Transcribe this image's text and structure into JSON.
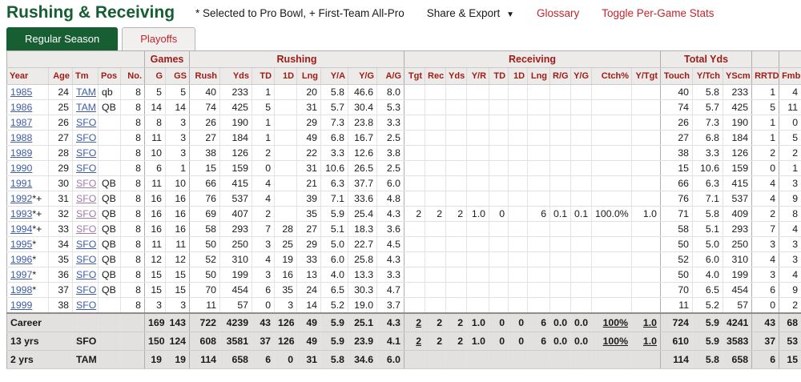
{
  "page": {
    "title": "Rushing & Receiving",
    "note": "* Selected to Pro Bowl, + First-Team All-Pro",
    "menu": {
      "share_export": "Share & Export",
      "dropdown_arrow": "▼",
      "glossary": "Glossary",
      "toggle_per_game": "Toggle Per-Game Stats"
    },
    "tabs": [
      {
        "label": "Regular Season",
        "active": true
      },
      {
        "label": "Playoffs",
        "active": false
      }
    ],
    "colors": {
      "title_green": "#155d33",
      "tab_active_bg": "#175e33",
      "header_maroon": "#9e1b13",
      "accent_red": "#c2262c",
      "link_blue": "#3e5ca8",
      "link_visited": "#a07bab"
    }
  },
  "table": {
    "groups": [
      {
        "label": "",
        "span": 5
      },
      {
        "label": "Games",
        "span": 2
      },
      {
        "label": "Rushing",
        "span": 8
      },
      {
        "label": "Receiving",
        "span": 11
      },
      {
        "label": "Total Yds",
        "span": 3
      },
      {
        "label": "",
        "span": 1
      },
      {
        "label": "",
        "span": 1
      }
    ],
    "columns": [
      "Year",
      "Age",
      "Tm",
      "Pos",
      "No.",
      "G",
      "GS",
      "Rush",
      "Yds",
      "TD",
      "1D",
      "Lng",
      "Y/A",
      "Y/G",
      "A/G",
      "Tgt",
      "Rec",
      "Yds",
      "Y/R",
      "TD",
      "1D",
      "Lng",
      "R/G",
      "Y/G",
      "Ctch%",
      "Y/Tgt",
      "Touch",
      "Y/Tch",
      "YScm",
      "RRTD",
      "Fmb"
    ],
    "rows": [
      {
        "year": "1985",
        "suffix": "",
        "age": "24",
        "team": "TAM",
        "team_visited": false,
        "pos": "qb",
        "cells": [
          "8",
          "5",
          "5",
          "40",
          "233",
          "1",
          "",
          "20",
          "5.8",
          "46.6",
          "8.0",
          "",
          "",
          "",
          "",
          "",
          "",
          "",
          "",
          "",
          "",
          "",
          "40",
          "5.8",
          "233",
          "1",
          "4"
        ]
      },
      {
        "year": "1986",
        "suffix": "",
        "age": "25",
        "team": "TAM",
        "team_visited": false,
        "pos": "QB",
        "cells": [
          "8",
          "14",
          "14",
          "74",
          "425",
          "5",
          "",
          "31",
          "5.7",
          "30.4",
          "5.3",
          "",
          "",
          "",
          "",
          "",
          "",
          "",
          "",
          "",
          "",
          "",
          "74",
          "5.7",
          "425",
          "5",
          "11"
        ]
      },
      {
        "year": "1987",
        "suffix": "",
        "age": "26",
        "team": "SFO",
        "team_visited": false,
        "pos": "",
        "cells": [
          "8",
          "8",
          "3",
          "26",
          "190",
          "1",
          "",
          "29",
          "7.3",
          "23.8",
          "3.3",
          "",
          "",
          "",
          "",
          "",
          "",
          "",
          "",
          "",
          "",
          "",
          "26",
          "7.3",
          "190",
          "1",
          "0"
        ]
      },
      {
        "year": "1988",
        "suffix": "",
        "age": "27",
        "team": "SFO",
        "team_visited": false,
        "pos": "",
        "cells": [
          "8",
          "11",
          "3",
          "27",
          "184",
          "1",
          "",
          "49",
          "6.8",
          "16.7",
          "2.5",
          "",
          "",
          "",
          "",
          "",
          "",
          "",
          "",
          "",
          "",
          "",
          "27",
          "6.8",
          "184",
          "1",
          "5"
        ]
      },
      {
        "year": "1989",
        "suffix": "",
        "age": "28",
        "team": "SFO",
        "team_visited": false,
        "pos": "",
        "cells": [
          "8",
          "10",
          "3",
          "38",
          "126",
          "2",
          "",
          "22",
          "3.3",
          "12.6",
          "3.8",
          "",
          "",
          "",
          "",
          "",
          "",
          "",
          "",
          "",
          "",
          "",
          "38",
          "3.3",
          "126",
          "2",
          "2"
        ]
      },
      {
        "year": "1990",
        "suffix": "",
        "age": "29",
        "team": "SFO",
        "team_visited": false,
        "pos": "",
        "cells": [
          "8",
          "6",
          "1",
          "15",
          "159",
          "0",
          "",
          "31",
          "10.6",
          "26.5",
          "2.5",
          "",
          "",
          "",
          "",
          "",
          "",
          "",
          "",
          "",
          "",
          "",
          "15",
          "10.6",
          "159",
          "0",
          "1"
        ]
      },
      {
        "year": "1991",
        "suffix": "",
        "age": "30",
        "team": "SFO",
        "team_visited": true,
        "pos": "QB",
        "cells": [
          "8",
          "11",
          "10",
          "66",
          "415",
          "4",
          "",
          "21",
          "6.3",
          "37.7",
          "6.0",
          "",
          "",
          "",
          "",
          "",
          "",
          "",
          "",
          "",
          "",
          "",
          "66",
          "6.3",
          "415",
          "4",
          "3"
        ]
      },
      {
        "year": "1992",
        "suffix": "*+",
        "age": "31",
        "team": "SFO",
        "team_visited": true,
        "pos": "QB",
        "cells": [
          "8",
          "16",
          "16",
          "76",
          "537",
          "4",
          "",
          "39",
          "7.1",
          "33.6",
          "4.8",
          "",
          "",
          "",
          "",
          "",
          "",
          "",
          "",
          "",
          "",
          "",
          "76",
          "7.1",
          "537",
          "4",
          "9"
        ]
      },
      {
        "year": "1993",
        "suffix": "*+",
        "age": "32",
        "team": "SFO",
        "team_visited": true,
        "pos": "QB",
        "cells": [
          "8",
          "16",
          "16",
          "69",
          "407",
          "2",
          "",
          "35",
          "5.9",
          "25.4",
          "4.3",
          "2",
          "2",
          "2",
          "1.0",
          "0",
          "",
          "6",
          "0.1",
          "0.1",
          "100.0%",
          "1.0",
          "71",
          "5.8",
          "409",
          "2",
          "8"
        ]
      },
      {
        "year": "1994",
        "suffix": "*+",
        "age": "33",
        "team": "SFO",
        "team_visited": true,
        "pos": "QB",
        "cells": [
          "8",
          "16",
          "16",
          "58",
          "293",
          "7",
          "28",
          "27",
          "5.1",
          "18.3",
          "3.6",
          "",
          "",
          "",
          "",
          "",
          "",
          "",
          "",
          "",
          "",
          "",
          "58",
          "5.1",
          "293",
          "7",
          "4"
        ]
      },
      {
        "year": "1995",
        "suffix": "*",
        "age": "34",
        "team": "SFO",
        "team_visited": false,
        "pos": "QB",
        "cells": [
          "8",
          "11",
          "11",
          "50",
          "250",
          "3",
          "25",
          "29",
          "5.0",
          "22.7",
          "4.5",
          "",
          "",
          "",
          "",
          "",
          "",
          "",
          "",
          "",
          "",
          "",
          "50",
          "5.0",
          "250",
          "3",
          "3"
        ]
      },
      {
        "year": "1996",
        "suffix": "*",
        "age": "35",
        "team": "SFO",
        "team_visited": false,
        "pos": "QB",
        "cells": [
          "8",
          "12",
          "12",
          "52",
          "310",
          "4",
          "19",
          "33",
          "6.0",
          "25.8",
          "4.3",
          "",
          "",
          "",
          "",
          "",
          "",
          "",
          "",
          "",
          "",
          "",
          "52",
          "6.0",
          "310",
          "4",
          "3"
        ]
      },
      {
        "year": "1997",
        "suffix": "*",
        "age": "36",
        "team": "SFO",
        "team_visited": false,
        "pos": "QB",
        "cells": [
          "8",
          "15",
          "15",
          "50",
          "199",
          "3",
          "16",
          "13",
          "4.0",
          "13.3",
          "3.3",
          "",
          "",
          "",
          "",
          "",
          "",
          "",
          "",
          "",
          "",
          "",
          "50",
          "4.0",
          "199",
          "3",
          "4"
        ]
      },
      {
        "year": "1998",
        "suffix": "*",
        "age": "37",
        "team": "SFO",
        "team_visited": false,
        "pos": "QB",
        "cells": [
          "8",
          "15",
          "15",
          "70",
          "454",
          "6",
          "35",
          "24",
          "6.5",
          "30.3",
          "4.7",
          "",
          "",
          "",
          "",
          "",
          "",
          "",
          "",
          "",
          "",
          "",
          "70",
          "6.5",
          "454",
          "6",
          "9"
        ]
      },
      {
        "year": "1999",
        "suffix": "",
        "age": "38",
        "team": "SFO",
        "team_visited": false,
        "pos": "",
        "cells": [
          "8",
          "3",
          "3",
          "11",
          "57",
          "0",
          "3",
          "14",
          "5.2",
          "19.0",
          "3.7",
          "",
          "",
          "",
          "",
          "",
          "",
          "",
          "",
          "",
          "",
          "",
          "11",
          "5.2",
          "57",
          "0",
          "2"
        ]
      }
    ],
    "footer_rows": [
      {
        "label": "Career",
        "team": "",
        "cells": [
          "",
          "169",
          "143",
          "722",
          "4239",
          "43",
          "126",
          "49",
          "5.9",
          "25.1",
          "4.3",
          "2",
          "2",
          "2",
          "1.0",
          "0",
          "0",
          "6",
          "0.0",
          "0.0",
          "100%",
          "1.0",
          "724",
          "5.9",
          "4241",
          "43",
          "68"
        ],
        "underline": [
          11,
          20,
          21
        ]
      },
      {
        "label": "13 yrs",
        "team": "SFO",
        "cells": [
          "",
          "150",
          "124",
          "608",
          "3581",
          "37",
          "126",
          "49",
          "5.9",
          "23.9",
          "4.1",
          "2",
          "2",
          "2",
          "1.0",
          "0",
          "0",
          "6",
          "0.0",
          "0.0",
          "100%",
          "1.0",
          "610",
          "5.9",
          "3583",
          "37",
          "53"
        ],
        "underline": [
          11,
          20,
          21
        ]
      },
      {
        "label": "2 yrs",
        "team": "TAM",
        "cells": [
          "",
          "19",
          "19",
          "114",
          "658",
          "6",
          "0",
          "31",
          "5.8",
          "34.6",
          "6.0",
          "",
          "",
          "",
          "",
          "",
          "",
          "",
          "",
          "",
          "",
          "",
          "114",
          "5.8",
          "658",
          "6",
          "15"
        ],
        "underline": []
      }
    ]
  }
}
